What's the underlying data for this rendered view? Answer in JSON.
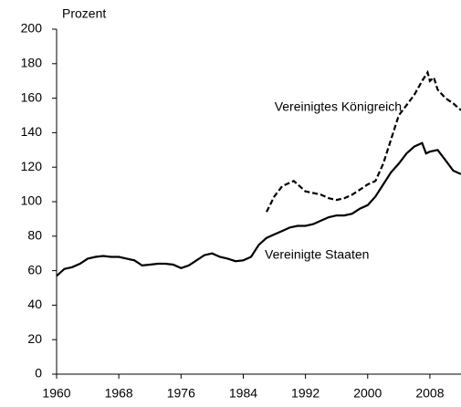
{
  "chart_data": {
    "type": "line",
    "y_label": "Prozent",
    "xlim": [
      1960,
      2012
    ],
    "xticks": [
      1960,
      1968,
      1976,
      1984,
      1992,
      2000,
      2008
    ],
    "ylim": [
      0,
      200
    ],
    "yticks": [
      0,
      20,
      40,
      60,
      80,
      100,
      120,
      140,
      160,
      180,
      200
    ],
    "grid": false,
    "series": [
      {
        "name": "Vereinigte Staaten",
        "color": "#000000",
        "style": "solid",
        "x": [
          1960,
          1961,
          1962,
          1963,
          1964,
          1965,
          1966,
          1967,
          1968,
          1969,
          1970,
          1971,
          1972,
          1973,
          1974,
          1975,
          1976,
          1977,
          1978,
          1979,
          1980,
          1981,
          1982,
          1983,
          1984,
          1985,
          1986,
          1987,
          1988,
          1989,
          1990,
          1991,
          1992,
          1993,
          1994,
          1995,
          1996,
          1997,
          1998,
          1999,
          2000,
          2001,
          2002,
          2003,
          2004,
          2005,
          2006,
          2007,
          2007.5,
          2008,
          2009,
          2010,
          2011,
          2012
        ],
        "values": [
          57,
          61,
          62,
          64,
          67,
          68,
          68.5,
          68,
          68,
          67,
          66,
          63,
          63.5,
          64,
          64,
          63.5,
          61.5,
          63,
          66,
          69,
          70,
          68,
          67,
          65.5,
          66,
          68,
          75,
          79,
          81,
          83,
          85,
          86,
          86,
          87,
          89,
          91,
          92,
          92,
          93,
          96,
          98,
          103,
          110,
          117,
          122,
          128,
          132,
          134,
          128,
          129,
          130,
          124,
          118,
          116
        ]
      },
      {
        "name": "Vereinigtes Königreich",
        "color": "#000000",
        "style": "dashed",
        "x": [
          1987,
          1988,
          1989,
          1990,
          1990.5,
          1991,
          1992,
          1993,
          1994,
          1995,
          1996,
          1997,
          1998,
          1999,
          2000,
          2001,
          2002,
          2003,
          2004,
          2005,
          2006,
          2007,
          2007.7,
          2008,
          2008.5,
          2009,
          2010,
          2011,
          2012
        ],
        "values": [
          94,
          103,
          109,
          111,
          112,
          110,
          106,
          105,
          104,
          102,
          101,
          102,
          104,
          107,
          110,
          112,
          122,
          136,
          150,
          156,
          162,
          170,
          175,
          170,
          172,
          165,
          160,
          157,
          153
        ]
      }
    ]
  }
}
